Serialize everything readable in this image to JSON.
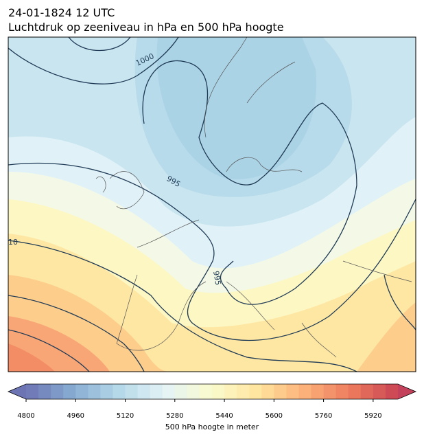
{
  "header": {
    "title": "24-01-1824 12 UTC",
    "subtitle": "Luchtdruk op zeeniveau in hPa en 500 hPa hoogte"
  },
  "map": {
    "contour_labels": [
      "1000",
      "995",
      "995",
      "10"
    ]
  },
  "colorbar": {
    "label": "500 hPa hoogte in meter",
    "range": [
      4800,
      6000
    ],
    "ticks": [
      4800,
      4960,
      5120,
      5280,
      5440,
      5600,
      5760,
      5920
    ],
    "levels": [
      4800,
      4840,
      4880,
      4920,
      4960,
      5000,
      5040,
      5080,
      5120,
      5160,
      5200,
      5240,
      5280,
      5320,
      5360,
      5400,
      5440,
      5480,
      5520,
      5560,
      5600,
      5640,
      5680,
      5720,
      5760,
      5800,
      5840,
      5880,
      5920,
      5960,
      6000
    ],
    "colormap": [
      "#6c74b3",
      "#87acd2",
      "#b6d9e9",
      "#e4f3f6",
      "#fbfbcd",
      "#fee59d",
      "#fcb07a",
      "#ec7a5d",
      "#c94455"
    ],
    "extend_colors": [
      "#6c74b3",
      "#c3415a"
    ]
  }
}
